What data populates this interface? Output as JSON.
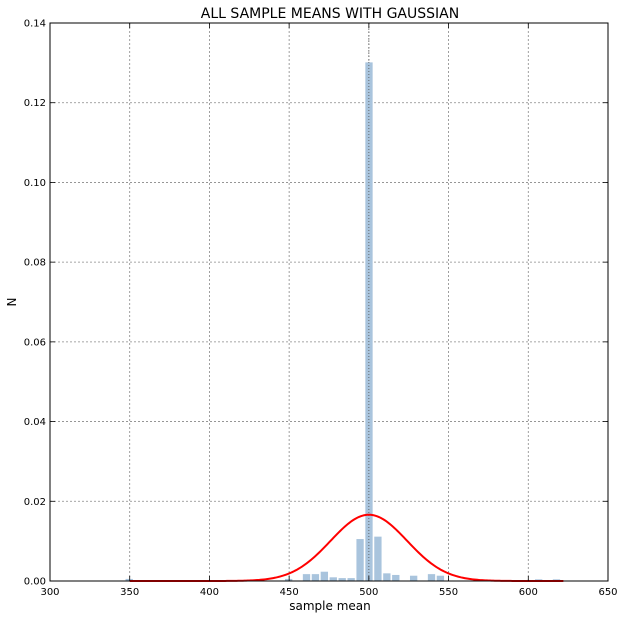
{
  "chart_data": {
    "type": "bar",
    "title": "ALL SAMPLE MEANS WITH GAUSSIAN",
    "xlabel": "sample mean",
    "ylabel": "N",
    "xlim": [
      300,
      650
    ],
    "ylim": [
      0,
      0.14
    ],
    "xticks": [
      "300",
      "350",
      "400",
      "450",
      "500",
      "550",
      "600",
      "650"
    ],
    "yticks": [
      "0.00",
      "0.02",
      "0.04",
      "0.06",
      "0.08",
      "0.10",
      "0.12",
      "0.14"
    ],
    "grid": true,
    "legend": "none",
    "histogram": {
      "color": "#a9c4dd",
      "bin_width": 5.6,
      "bins": [
        {
          "x": 350.0,
          "y": 0.0006
        },
        {
          "x": 450.0,
          "y": 0.0006
        },
        {
          "x": 461.2,
          "y": 0.0018
        },
        {
          "x": 466.8,
          "y": 0.0018
        },
        {
          "x": 472.4,
          "y": 0.0024
        },
        {
          "x": 478.0,
          "y": 0.001
        },
        {
          "x": 483.6,
          "y": 0.0008
        },
        {
          "x": 489.2,
          "y": 0.0008
        },
        {
          "x": 494.8,
          "y": 0.0106
        },
        {
          "x": 500.4,
          "y": 0.1302
        },
        {
          "x": 506.0,
          "y": 0.0112
        },
        {
          "x": 511.6,
          "y": 0.002
        },
        {
          "x": 517.2,
          "y": 0.0016
        },
        {
          "x": 528.4,
          "y": 0.0014
        },
        {
          "x": 539.6,
          "y": 0.0018
        },
        {
          "x": 545.2,
          "y": 0.0014
        },
        {
          "x": 606.8,
          "y": 0.0005
        },
        {
          "x": 618.0,
          "y": 0.0005
        }
      ]
    },
    "gaussian": {
      "color": "#ff0000",
      "mean": 500,
      "sd": 24,
      "x_range": [
        350,
        622
      ]
    },
    "vertical_dotted_line": {
      "x": 500
    }
  }
}
